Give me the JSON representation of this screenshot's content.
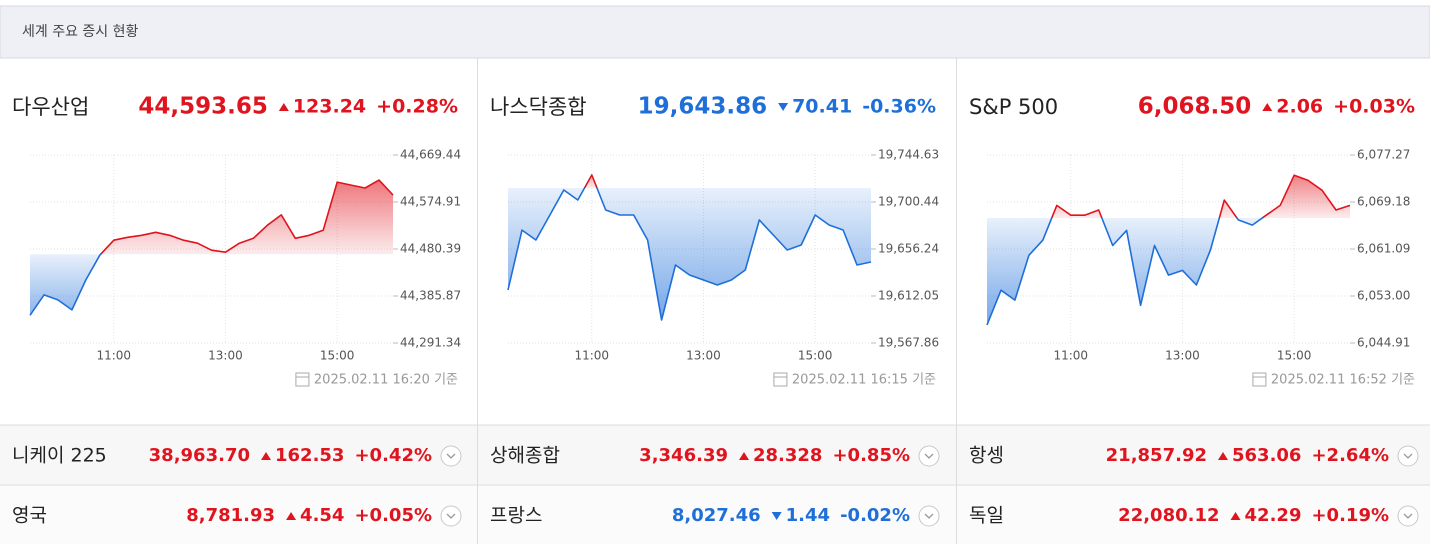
{
  "header": {
    "title": "세계 주요 증시 현황"
  },
  "colors": {
    "up": "#e0141e",
    "down": "#1e6fd9"
  },
  "panels": [
    {
      "name": "다우산업",
      "value": "44,593.65",
      "change": "123.24",
      "change_pct": "+0.28%",
      "direction": "up",
      "timestamp": "2025.02.11 16:20 기준",
      "chart": {
        "type": "line",
        "x": [
          9.5,
          9.75,
          10,
          10.25,
          10.5,
          10.75,
          11,
          11.25,
          11.5,
          11.75,
          12,
          12.25,
          12.5,
          12.75,
          13,
          13.25,
          13.5,
          13.75,
          14,
          14.25,
          14.5,
          14.75,
          15,
          15.25,
          15.5,
          15.75,
          16
        ],
        "values": [
          44347,
          44388,
          44378,
          44358,
          44418,
          44468,
          44498,
          44504,
          44508,
          44514,
          44508,
          44498,
          44492,
          44478,
          44474,
          44492,
          44502,
          44528,
          44549,
          44502,
          44508,
          44518,
          44615,
          44609,
          44603,
          44619,
          44589
        ],
        "baseline": 44470,
        "xlim": [
          9.5,
          16
        ],
        "ylim": [
          44291.34,
          44669.44
        ],
        "xticks": [
          {
            "value": 11,
            "label": "11:00"
          },
          {
            "value": 13,
            "label": "13:00"
          },
          {
            "value": 15,
            "label": "15:00"
          }
        ],
        "yticks": [
          {
            "value": 44291.34,
            "label": "44,291.34"
          },
          {
            "value": 44385.87,
            "label": "44,385.87"
          },
          {
            "value": 44480.39,
            "label": "44,480.39"
          },
          {
            "value": 44574.91,
            "label": "44,574.91"
          },
          {
            "value": 44669.44,
            "label": "44,669.44"
          }
        ]
      }
    },
    {
      "name": "나스닥종합",
      "value": "19,643.86",
      "change": "70.41",
      "change_pct": "-0.36%",
      "direction": "down",
      "timestamp": "2025.02.11 16:15 기준",
      "chart": {
        "type": "line",
        "x": [
          9.5,
          9.75,
          10,
          10.25,
          10.5,
          10.75,
          11,
          11.25,
          11.5,
          11.75,
          12,
          12.25,
          12.5,
          12.75,
          13,
          13.25,
          13.5,
          13.75,
          14,
          14.25,
          14.5,
          14.75,
          15,
          15.25,
          15.5,
          15.75,
          16
        ],
        "values": [
          19617.7,
          19674,
          19664.7,
          19688.2,
          19711.7,
          19702.3,
          19725.8,
          19692.9,
          19688.2,
          19688.2,
          19664.7,
          19589.5,
          19641.2,
          19631.8,
          19627.1,
          19622.4,
          19627.1,
          19636.5,
          19683.5,
          19669.4,
          19655.3,
          19660,
          19688.2,
          19678.8,
          19674.1,
          19641.2,
          19644
        ],
        "baseline": 19713.6,
        "xlim": [
          9.5,
          16
        ],
        "ylim": [
          19567.86,
          19744.63
        ],
        "xticks": [
          {
            "value": 11,
            "label": "11:00"
          },
          {
            "value": 13,
            "label": "13:00"
          },
          {
            "value": 15,
            "label": "15:00"
          }
        ],
        "yticks": [
          {
            "value": 19567.86,
            "label": "19,567.86"
          },
          {
            "value": 19612.05,
            "label": "19,612.05"
          },
          {
            "value": 19656.24,
            "label": "19,656.24"
          },
          {
            "value": 19700.44,
            "label": "19,700.44"
          },
          {
            "value": 19744.63,
            "label": "19,744.63"
          }
        ]
      }
    },
    {
      "name": "S&P 500",
      "value": "6,068.50",
      "change": "2.06",
      "change_pct": "+0.03%",
      "direction": "up",
      "timestamp": "2025.02.11 16:52 기준",
      "chart": {
        "type": "line",
        "x": [
          9.5,
          9.75,
          10,
          10.25,
          10.5,
          10.75,
          11,
          11.25,
          11.5,
          11.75,
          12,
          12.25,
          12.5,
          12.75,
          13,
          13.25,
          13.5,
          13.75,
          14,
          14.25,
          14.5,
          14.75,
          15,
          15.25,
          15.5,
          15.75,
          16
        ],
        "values": [
          6048.0,
          6054.0,
          6052.3,
          6060.0,
          6062.6,
          6068.6,
          6066.9,
          6066.9,
          6067.8,
          6061.7,
          6064.3,
          6051.4,
          6061.7,
          6056.6,
          6057.4,
          6054.9,
          6060.9,
          6069.5,
          6066.1,
          6065.2,
          6066.9,
          6068.6,
          6073.8,
          6072.9,
          6071.2,
          6067.8,
          6068.6
        ],
        "baseline": 6066.43,
        "xlim": [
          9.5,
          16
        ],
        "ylim": [
          6044.91,
          6077.27
        ],
        "xticks": [
          {
            "value": 11,
            "label": "11:00"
          },
          {
            "value": 13,
            "label": "13:00"
          },
          {
            "value": 15,
            "label": "15:00"
          }
        ],
        "yticks": [
          {
            "value": 6044.91,
            "label": "6,044.91"
          },
          {
            "value": 6053,
            "label": "6,053.00"
          },
          {
            "value": 6061.09,
            "label": "6,061.09"
          },
          {
            "value": 6069.18,
            "label": "6,069.18"
          },
          {
            "value": 6077.27,
            "label": "6,077.27"
          }
        ]
      }
    }
  ],
  "quotes": [
    {
      "name": "니케이 225",
      "value": "38,963.70",
      "change": "162.53",
      "change_pct": "+0.42%",
      "direction": "up"
    },
    {
      "name": "상해종합",
      "value": "3,346.39",
      "change": "28.328",
      "change_pct": "+0.85%",
      "direction": "up"
    },
    {
      "name": "항셍",
      "value": "21,857.92",
      "change": "563.06",
      "change_pct": "+2.64%",
      "direction": "up"
    },
    {
      "name": "영국",
      "value": "8,781.93",
      "change": "4.54",
      "change_pct": "+0.05%",
      "direction": "up"
    },
    {
      "name": "프랑스",
      "value": "8,027.46",
      "change": "1.44",
      "change_pct": "-0.02%",
      "direction": "down"
    },
    {
      "name": "독일",
      "value": "22,080.12",
      "change": "42.29",
      "change_pct": "+0.19%",
      "direction": "up"
    }
  ]
}
